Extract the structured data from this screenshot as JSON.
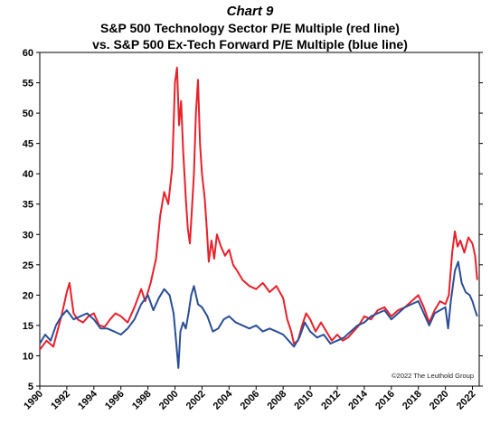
{
  "chart_label": "Chart 9",
  "chart_data": {
    "type": "line",
    "title_lines": [
      "S&P 500 Technology Sector P/E Multiple (red line)",
      "vs. S&P 500 Ex-Tech Forward P/E Multiple (blue line)"
    ],
    "xlabel": "",
    "ylabel": "",
    "xlim": [
      1990,
      2022.5
    ],
    "ylim": [
      5,
      60
    ],
    "y_ticks": [
      5,
      10,
      15,
      20,
      25,
      30,
      35,
      40,
      45,
      50,
      55,
      60
    ],
    "x_ticks": [
      1990,
      1992,
      1994,
      1996,
      1998,
      2000,
      2002,
      2004,
      2006,
      2008,
      2010,
      2012,
      2014,
      2016,
      2018,
      2020,
      2022
    ],
    "grid": false,
    "annotation": "©2022 The Leuthold Group",
    "series": [
      {
        "color": "#e8202a",
        "points": [
          [
            1990.0,
            11.0
          ],
          [
            1990.5,
            12.5
          ],
          [
            1991.0,
            11.5
          ],
          [
            1991.3,
            14.0
          ],
          [
            1991.6,
            16.5
          ],
          [
            1992.0,
            20.5
          ],
          [
            1992.2,
            22.0
          ],
          [
            1992.5,
            17.0
          ],
          [
            1992.8,
            16.0
          ],
          [
            1993.2,
            15.5
          ],
          [
            1993.6,
            16.5
          ],
          [
            1994.0,
            17.0
          ],
          [
            1994.4,
            15.0
          ],
          [
            1994.8,
            14.8
          ],
          [
            1995.2,
            16.0
          ],
          [
            1995.6,
            17.0
          ],
          [
            1996.0,
            16.5
          ],
          [
            1996.5,
            15.5
          ],
          [
            1997.0,
            18.0
          ],
          [
            1997.5,
            21.0
          ],
          [
            1997.8,
            19.0
          ],
          [
            1998.2,
            22.0
          ],
          [
            1998.6,
            26.0
          ],
          [
            1998.9,
            33.0
          ],
          [
            1999.2,
            37.0
          ],
          [
            1999.5,
            35.0
          ],
          [
            1999.8,
            41.0
          ],
          [
            2000.0,
            55.0
          ],
          [
            2000.15,
            57.5
          ],
          [
            2000.3,
            48.0
          ],
          [
            2000.45,
            52.0
          ],
          [
            2000.6,
            44.0
          ],
          [
            2000.8,
            36.0
          ],
          [
            2000.95,
            31.0
          ],
          [
            2001.1,
            28.5
          ],
          [
            2001.25,
            34.0
          ],
          [
            2001.4,
            40.0
          ],
          [
            2001.55,
            50.0
          ],
          [
            2001.7,
            55.5
          ],
          [
            2001.85,
            45.0
          ],
          [
            2002.0,
            40.0
          ],
          [
            2002.2,
            36.0
          ],
          [
            2002.35,
            31.0
          ],
          [
            2002.5,
            25.5
          ],
          [
            2002.7,
            29.0
          ],
          [
            2002.9,
            26.0
          ],
          [
            2003.1,
            30.0
          ],
          [
            2003.4,
            28.0
          ],
          [
            2003.7,
            26.5
          ],
          [
            2004.0,
            27.5
          ],
          [
            2004.3,
            25.0
          ],
          [
            2004.6,
            24.0
          ],
          [
            2005.0,
            22.5
          ],
          [
            2005.5,
            21.5
          ],
          [
            2006.0,
            21.0
          ],
          [
            2006.5,
            22.0
          ],
          [
            2007.0,
            20.5
          ],
          [
            2007.5,
            21.5
          ],
          [
            2008.0,
            19.5
          ],
          [
            2008.3,
            16.0
          ],
          [
            2008.6,
            14.0
          ],
          [
            2008.8,
            12.0
          ],
          [
            2009.1,
            12.5
          ],
          [
            2009.4,
            15.0
          ],
          [
            2009.7,
            17.0
          ],
          [
            2010.0,
            16.0
          ],
          [
            2010.4,
            14.0
          ],
          [
            2010.8,
            15.5
          ],
          [
            2011.2,
            14.0
          ],
          [
            2011.6,
            12.5
          ],
          [
            2012.0,
            13.5
          ],
          [
            2012.4,
            12.5
          ],
          [
            2012.8,
            13.0
          ],
          [
            2013.2,
            14.0
          ],
          [
            2013.6,
            15.0
          ],
          [
            2014.0,
            16.5
          ],
          [
            2014.5,
            16.0
          ],
          [
            2015.0,
            17.5
          ],
          [
            2015.5,
            18.0
          ],
          [
            2016.0,
            16.5
          ],
          [
            2016.5,
            17.5
          ],
          [
            2017.0,
            18.0
          ],
          [
            2017.5,
            19.0
          ],
          [
            2018.0,
            20.0
          ],
          [
            2018.4,
            18.0
          ],
          [
            2018.8,
            15.5
          ],
          [
            2019.2,
            17.5
          ],
          [
            2019.6,
            19.0
          ],
          [
            2020.0,
            18.5
          ],
          [
            2020.25,
            20.0
          ],
          [
            2020.5,
            27.0
          ],
          [
            2020.7,
            30.5
          ],
          [
            2020.9,
            28.0
          ],
          [
            2021.1,
            29.0
          ],
          [
            2021.4,
            27.0
          ],
          [
            2021.7,
            29.5
          ],
          [
            2022.0,
            28.5
          ],
          [
            2022.2,
            26.5
          ],
          [
            2022.35,
            22.5
          ]
        ]
      },
      {
        "color": "#2a4e96",
        "points": [
          [
            1990.0,
            12.0
          ],
          [
            1990.4,
            13.5
          ],
          [
            1990.8,
            12.5
          ],
          [
            1991.2,
            15.0
          ],
          [
            1991.6,
            16.5
          ],
          [
            1992.0,
            17.5
          ],
          [
            1992.5,
            16.0
          ],
          [
            1993.0,
            16.5
          ],
          [
            1993.5,
            17.0
          ],
          [
            1994.0,
            16.0
          ],
          [
            1994.5,
            14.5
          ],
          [
            1995.0,
            14.5
          ],
          [
            1995.5,
            14.0
          ],
          [
            1996.0,
            13.5
          ],
          [
            1996.5,
            14.5
          ],
          [
            1997.0,
            16.0
          ],
          [
            1997.5,
            18.5
          ],
          [
            1998.0,
            20.0
          ],
          [
            1998.4,
            17.5
          ],
          [
            1998.8,
            19.5
          ],
          [
            1999.2,
            21.0
          ],
          [
            1999.6,
            20.0
          ],
          [
            1999.9,
            17.0
          ],
          [
            2000.1,
            12.0
          ],
          [
            2000.25,
            8.0
          ],
          [
            2000.4,
            14.0
          ],
          [
            2000.6,
            15.5
          ],
          [
            2000.8,
            14.5
          ],
          [
            2001.0,
            17.0
          ],
          [
            2001.2,
            20.0
          ],
          [
            2001.4,
            21.5
          ],
          [
            2001.7,
            18.5
          ],
          [
            2002.0,
            18.0
          ],
          [
            2002.4,
            16.5
          ],
          [
            2002.8,
            14.0
          ],
          [
            2003.2,
            14.5
          ],
          [
            2003.6,
            16.0
          ],
          [
            2004.0,
            16.5
          ],
          [
            2004.5,
            15.5
          ],
          [
            2005.0,
            15.0
          ],
          [
            2005.5,
            14.5
          ],
          [
            2006.0,
            15.0
          ],
          [
            2006.5,
            14.0
          ],
          [
            2007.0,
            14.5
          ],
          [
            2007.5,
            14.0
          ],
          [
            2008.0,
            13.5
          ],
          [
            2008.4,
            12.5
          ],
          [
            2008.8,
            11.5
          ],
          [
            2009.2,
            13.0
          ],
          [
            2009.6,
            15.5
          ],
          [
            2010.0,
            14.0
          ],
          [
            2010.5,
            13.0
          ],
          [
            2011.0,
            13.5
          ],
          [
            2011.5,
            12.0
          ],
          [
            2012.0,
            12.5
          ],
          [
            2012.5,
            13.0
          ],
          [
            2013.0,
            14.0
          ],
          [
            2013.5,
            15.0
          ],
          [
            2014.0,
            15.5
          ],
          [
            2014.5,
            16.5
          ],
          [
            2015.0,
            17.0
          ],
          [
            2015.5,
            17.5
          ],
          [
            2016.0,
            16.0
          ],
          [
            2016.5,
            17.0
          ],
          [
            2017.0,
            18.0
          ],
          [
            2017.5,
            18.5
          ],
          [
            2018.0,
            19.0
          ],
          [
            2018.4,
            17.0
          ],
          [
            2018.8,
            15.0
          ],
          [
            2019.2,
            17.0
          ],
          [
            2019.6,
            17.5
          ],
          [
            2020.0,
            18.0
          ],
          [
            2020.2,
            14.5
          ],
          [
            2020.4,
            19.0
          ],
          [
            2020.7,
            24.0
          ],
          [
            2020.95,
            25.5
          ],
          [
            2021.2,
            22.0
          ],
          [
            2021.5,
            20.5
          ],
          [
            2021.8,
            20.0
          ],
          [
            2022.0,
            19.0
          ],
          [
            2022.2,
            17.5
          ],
          [
            2022.35,
            16.5
          ]
        ]
      }
    ]
  }
}
